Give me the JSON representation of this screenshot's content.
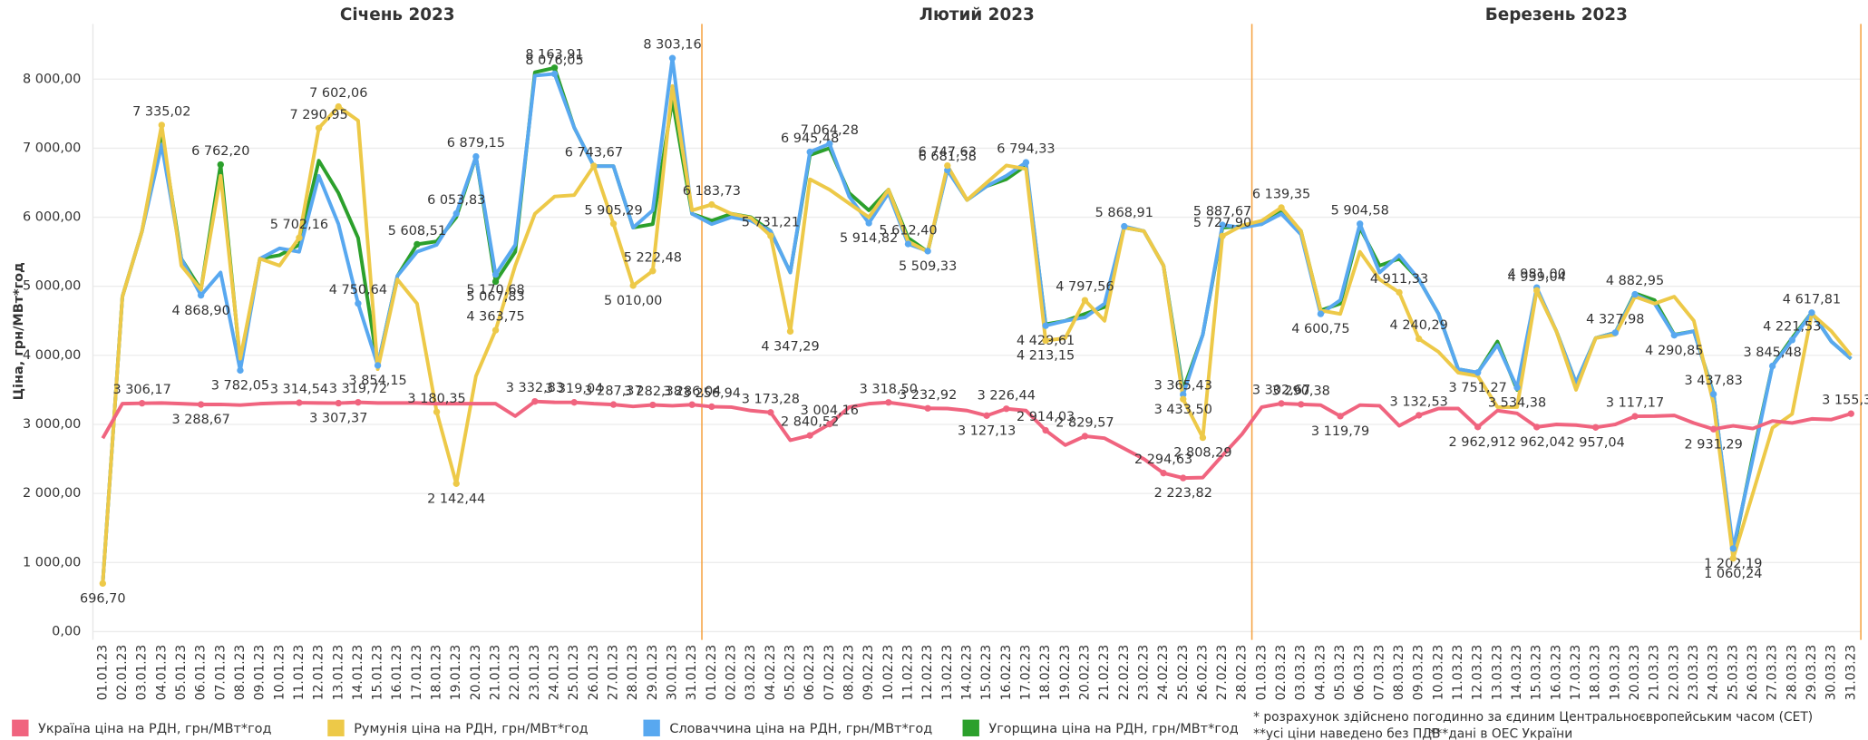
{
  "chart_data": {
    "type": "line",
    "panels": [
      {
        "title": "Січень 2023"
      },
      {
        "title": "Лютий 2023"
      },
      {
        "title": "Березень 2023"
      }
    ],
    "y_label": "Ціна, грн/МВт*год",
    "ylim": [
      -120,
      8800
    ],
    "yticks": [
      {
        "value": 0,
        "label": "0,00"
      },
      {
        "value": 1000,
        "label": "1 000,00"
      },
      {
        "value": 2000,
        "label": "2 000,00"
      },
      {
        "value": 3000,
        "label": "3 000,00"
      },
      {
        "value": 4000,
        "label": "4 000,00"
      },
      {
        "value": 5000,
        "label": "5 000,00"
      },
      {
        "value": 6000,
        "label": "6 000,00"
      },
      {
        "value": 7000,
        "label": "7 000,00"
      },
      {
        "value": 8000,
        "label": "8 000,00"
      }
    ],
    "grid": true,
    "legend": "bottom",
    "notes": [
      "* розрахунок здійснено погодинно за єдиним Центральноєвропейським часом (CET)",
      "**усі ціни наведено без ПДВ",
      "***дані в ОЕС України"
    ],
    "categories": [
      "01.01.23",
      "02.01.23",
      "03.01.23",
      "04.01.23",
      "05.01.23",
      "06.01.23",
      "07.01.23",
      "08.01.23",
      "09.01.23",
      "10.01.23",
      "11.01.23",
      "12.01.23",
      "13.01.23",
      "14.01.23",
      "15.01.23",
      "16.01.23",
      "17.01.23",
      "18.01.23",
      "19.01.23",
      "20.01.23",
      "21.01.23",
      "22.01.23",
      "23.01.23",
      "24.01.23",
      "25.01.23",
      "26.01.23",
      "27.01.23",
      "28.01.23",
      "29.01.23",
      "30.01.23",
      "31.01.23",
      "01.02.23",
      "02.02.23",
      "03.02.23",
      "04.02.23",
      "05.02.23",
      "06.02.23",
      "07.02.23",
      "08.02.23",
      "09.02.23",
      "10.02.23",
      "11.02.23",
      "12.02.23",
      "13.02.23",
      "14.02.23",
      "15.02.23",
      "16.02.23",
      "17.02.23",
      "18.02.23",
      "19.02.23",
      "20.02.23",
      "21.02.23",
      "22.02.23",
      "23.02.23",
      "24.02.23",
      "25.02.23",
      "26.02.23",
      "27.02.23",
      "28.02.23",
      "01.03.23",
      "02.03.23",
      "03.03.23",
      "04.03.23",
      "05.03.23",
      "06.03.23",
      "07.03.23",
      "08.03.23",
      "09.03.23",
      "10.03.23",
      "11.03.23",
      "12.03.23",
      "13.03.23",
      "14.03.23",
      "15.03.23",
      "16.03.23",
      "17.03.23",
      "18.03.23",
      "19.03.23",
      "20.03.23",
      "21.03.23",
      "22.03.23",
      "23.03.23",
      "24.03.23",
      "25.03.23",
      "26.03.23",
      "27.03.23",
      "28.03.23",
      "29.03.23",
      "30.03.23",
      "31.03.23"
    ],
    "series": [
      {
        "name": "Угорщина ціна на РДН, грн/МВт*год",
        "color": "#2ca02c",
        "values": [
          696.7,
          4850,
          5800,
          7250,
          5400,
          4950,
          6762.2,
          3900,
          5400,
          5450,
          5600,
          6820,
          6350,
          5700,
          3854.15,
          5150,
          5608.51,
          5650,
          6000,
          6879.15,
          5067.83,
          5500,
          8100,
          8163.91,
          7300,
          6740,
          6740,
          5850,
          5900,
          7700,
          6050,
          5950,
          6050,
          6000,
          5800,
          5200,
          6900,
          7000,
          6350,
          6100,
          6400,
          5700,
          5500,
          6700,
          6250,
          6450,
          6550,
          6750,
          4450,
          4500,
          4600,
          4700,
          5850,
          5800,
          5300,
          3500,
          4300,
          5850,
          5870,
          5900,
          6100,
          5800,
          4650,
          4750,
          5850,
          5300,
          5400,
          5100,
          4600,
          3800,
          3750,
          4200,
          3500,
          4950,
          4350,
          3600,
          4250,
          4330,
          4900,
          4800,
          4300,
          4350,
          3450,
          1150,
          2550,
          3850,
          4250,
          4620,
          4200,
          3950
        ],
        "value_labels": [
          null,
          null,
          null,
          null,
          null,
          null,
          "6 762,20",
          null,
          null,
          null,
          null,
          null,
          null,
          null,
          null,
          null,
          "5 608,51",
          null,
          null,
          null,
          "5 067,83",
          null,
          null,
          "8 163,91",
          null,
          null,
          null,
          null,
          null,
          null,
          null,
          null,
          null,
          null,
          null,
          null,
          null,
          null,
          null,
          null,
          null,
          null,
          null,
          null,
          null,
          null,
          null,
          null,
          null,
          null,
          null,
          null,
          null,
          null,
          null,
          null,
          null,
          null,
          null,
          null,
          null,
          null,
          null,
          null,
          null,
          null,
          null,
          null,
          null,
          null,
          null,
          null,
          null,
          null,
          null,
          null,
          null,
          null,
          null,
          null,
          null,
          null,
          null,
          null,
          null,
          null,
          null,
          null,
          null,
          null
        ]
      },
      {
        "name": "Словаччина ціна на РДН, грн/МВт*год",
        "color": "#58a8f0",
        "values": [
          696.7,
          4850,
          5800,
          7050,
          5400,
          4868.9,
          5200,
          3782.05,
          5400,
          5550,
          5500,
          6600,
          5900,
          4750.64,
          3854.15,
          5150,
          5500,
          5600,
          6053.83,
          6879.15,
          5170.68,
          5600,
          8050,
          8076.05,
          7300,
          6740,
          6740,
          5850,
          6100,
          8303.16,
          6050,
          5900,
          6000,
          5950,
          5800,
          5200,
          6945.48,
          7064.28,
          6300,
          5914.82,
          6350,
          5612.4,
          5509.33,
          6681.38,
          6250,
          6450,
          6600,
          6794.33,
          4429.61,
          4500,
          4550,
          4750,
          5868.91,
          5800,
          5300,
          3433.5,
          4300,
          5887.67,
          5850,
          5900,
          6050,
          5750,
          4600.75,
          4800,
          5904.58,
          5200,
          5450,
          5100,
          4600,
          3800,
          3751.27,
          4150,
          3534.38,
          4981,
          4350,
          3600,
          4250,
          4327.98,
          4882.95,
          4750,
          4290.85,
          4350,
          3437.83,
          1202.19,
          2500,
          3845.48,
          4221.53,
          4617.81,
          4200,
          3950
        ],
        "value_labels": [
          null,
          null,
          null,
          null,
          null,
          "4 868,90",
          null,
          "3 782,05",
          null,
          null,
          null,
          null,
          null,
          "4 750,64",
          "3 854,15",
          null,
          null,
          null,
          "6 053,83",
          "6 879,15",
          "5 170,68",
          null,
          null,
          "8 076,05",
          null,
          null,
          null,
          null,
          null,
          "8 303,16",
          null,
          null,
          null,
          null,
          null,
          null,
          "6 945,48",
          "7 064,28",
          null,
          "5 914,82",
          null,
          "5 612,40",
          "5 509,33",
          "6 681,38",
          null,
          null,
          null,
          "6 794,33",
          "4 429,61",
          null,
          null,
          null,
          "5 868,91",
          null,
          null,
          "3 433,50",
          null,
          "5 887,67",
          null,
          null,
          null,
          null,
          "4 600,75",
          null,
          "5 904,58",
          null,
          null,
          null,
          null,
          null,
          "3 751,27",
          null,
          "3 534,38",
          "4 981,00",
          null,
          null,
          null,
          "4 327,98",
          "4 882,95",
          null,
          "4 290,85",
          null,
          "3 437,83",
          "1 202,19",
          null,
          "3 845,48",
          "4 221,53",
          "4 617,81",
          null,
          null
        ]
      },
      {
        "name": "Румунія ціна на РДН, грн/МВт*год",
        "color": "#edc948",
        "values": [
          696.7,
          4850,
          5800,
          7335.02,
          5300,
          4950,
          6600,
          3950,
          5400,
          5300,
          5702.16,
          7290.95,
          7602.06,
          7400,
          3800,
          5100,
          4750,
          3180.35,
          2142.44,
          3700,
          4363.75,
          5300,
          6050,
          6300,
          6320,
          6743.67,
          5905.29,
          5010,
          5222.48,
          7900,
          6100,
          6183.73,
          6050,
          5990,
          5731.21,
          4347.29,
          6550,
          6400,
          6200,
          6000,
          6400,
          5650,
          5500,
          6747.63,
          6250,
          6500,
          6750,
          6700,
          4213.15,
          4250,
          4797.56,
          4500,
          5850,
          5800,
          5300,
          3365.43,
          2808.29,
          5727.9,
          5880,
          5950,
          6139.35,
          5800,
          4650,
          4600,
          5500,
          5100,
          4911.33,
          4240.29,
          4050,
          3750,
          3700,
          3250,
          3250,
          4939.04,
          4350,
          3500,
          4250,
          4300,
          4850,
          4750,
          4850,
          4500,
          3300,
          1060.24,
          2000,
          2950,
          3150,
          4600,
          4350,
          4000
        ],
        "value_labels": [
          "696,70",
          null,
          null,
          "7 335,02",
          null,
          null,
          null,
          null,
          null,
          null,
          "5 702,16",
          "7 290,95",
          "7 602,06",
          null,
          null,
          null,
          null,
          "3 180,35",
          "2 142,44",
          null,
          "4 363,75",
          null,
          null,
          null,
          null,
          "6 743,67",
          "5 905,29",
          "5 010,00",
          "5 222,48",
          null,
          null,
          "6 183,73",
          null,
          null,
          "5 731,21",
          "4 347,29",
          null,
          null,
          null,
          null,
          null,
          null,
          null,
          "6 747,63",
          null,
          null,
          null,
          null,
          "4 213,15",
          null,
          "4 797,56",
          null,
          null,
          null,
          null,
          "3 365,43",
          "2 808,29",
          "5 727,90",
          null,
          null,
          "6 139,35",
          null,
          null,
          null,
          null,
          null,
          "4 911,33",
          "4 240,29",
          null,
          null,
          null,
          null,
          null,
          "4 939,04",
          null,
          null,
          null,
          null,
          null,
          null,
          null,
          null,
          null,
          "1 060,24",
          null,
          null,
          null,
          null,
          null,
          null
        ]
      },
      {
        "name": "Україна ціна на РДН, грн/МВт*год",
        "color": "#f0647f",
        "values": [
          2800,
          3300,
          3306.17,
          3310,
          3300,
          3288.67,
          3290,
          3280,
          3300,
          3310,
          3314.54,
          3310,
          3307.37,
          3319.72,
          3310,
          3310,
          3310,
          3300,
          3300,
          3300,
          3300,
          3120,
          3332.83,
          3320,
          3319.04,
          3300,
          3287.37,
          3260,
          3282.38,
          3270,
          3286.04,
          3256.94,
          3250,
          3200,
          3173.28,
          2770,
          2840.52,
          3004.16,
          3250,
          3300,
          3318.5,
          3280,
          3232.92,
          3230,
          3200,
          3127.13,
          3226.44,
          3200,
          2914.03,
          2700,
          2829.57,
          2800,
          2650,
          2500,
          2294.63,
          2223.82,
          2230,
          2550,
          2860,
          3250,
          3302.67,
          3290.38,
          3280,
          3119.79,
          3280,
          3270,
          2980,
          3132.53,
          3230,
          3230,
          2962.91,
          3200,
          3160,
          2962.04,
          3000,
          2990,
          2957.04,
          3000,
          3117.17,
          3120,
          3130,
          3020,
          2931.29,
          2980,
          2940,
          3050,
          3020,
          3080,
          3070,
          3155.34
        ],
        "value_labels": [
          null,
          null,
          "3 306,17",
          null,
          null,
          "3 288,67",
          null,
          null,
          null,
          null,
          "3 314,54",
          null,
          "3 307,37",
          "3 319,72",
          null,
          null,
          null,
          null,
          null,
          null,
          null,
          null,
          "3 332,83",
          null,
          "3 319,04",
          null,
          "3 287,37",
          null,
          "3 282,38",
          null,
          "3 286,04",
          "3 256,94",
          null,
          null,
          "3 173,28",
          null,
          "2 840,52",
          "3 004,16",
          null,
          null,
          "3 318,50",
          null,
          "3 232,92",
          null,
          null,
          "3 127,13",
          "3 226,44",
          null,
          "2 914,03",
          null,
          "2 829,57",
          null,
          null,
          null,
          "2 294,63",
          "2 223,82",
          null,
          null,
          null,
          null,
          "3 302,67",
          "3 290,38",
          null,
          "3 119,79",
          null,
          null,
          null,
          "3 132,53",
          null,
          null,
          "2 962,91",
          null,
          null,
          "2 962,04",
          null,
          null,
          "2 957,04",
          null,
          "3 117,17",
          null,
          null,
          null,
          "2 931,29",
          null,
          null,
          null,
          null,
          null,
          null,
          "3 155,34"
        ]
      }
    ]
  }
}
